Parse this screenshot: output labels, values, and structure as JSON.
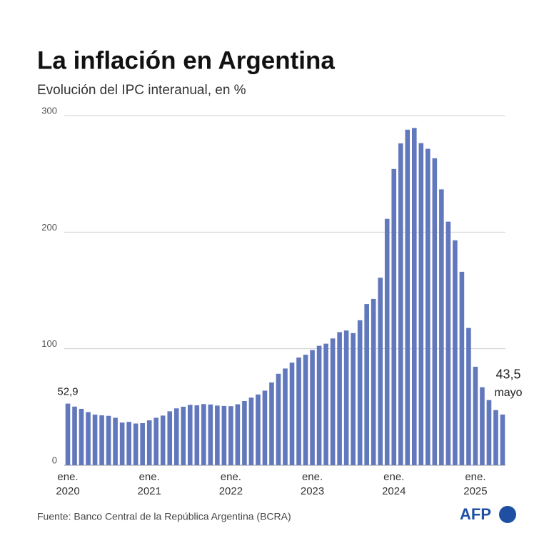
{
  "chart_data": {
    "type": "bar",
    "title": "La inflación en Argentina",
    "subtitle": "Evolución del IPC interanual, en %",
    "source": "Fuente: Banco Central de la República Argentina (BCRA)",
    "logo": "AFP",
    "annotation": "mayo",
    "color": "#6278bd",
    "categories": [
      "ene.\n2020",
      null,
      null,
      null,
      null,
      null,
      null,
      null,
      null,
      null,
      null,
      null,
      "ene.\n2021",
      null,
      null,
      null,
      null,
      null,
      null,
      null,
      null,
      null,
      null,
      null,
      "ene.\n2022",
      null,
      null,
      null,
      null,
      null,
      null,
      null,
      null,
      null,
      null,
      null,
      "ene.\n2023",
      null,
      null,
      null,
      null,
      null,
      null,
      null,
      null,
      null,
      null,
      null,
      "ene.\n2024",
      null,
      null,
      null,
      null,
      null,
      null,
      null,
      null,
      null,
      null,
      null,
      "ene.\n2025",
      null,
      null,
      null,
      null
    ],
    "values": [
      52.9,
      50.3,
      48.4,
      45.6,
      43.4,
      42.8,
      42.4,
      40.7,
      36.6,
      37.2,
      35.8,
      36.1,
      38.5,
      40.7,
      42.6,
      46.3,
      48.8,
      50.2,
      51.8,
      51.4,
      52.5,
      52.1,
      51.2,
      50.9,
      50.7,
      52.3,
      55.1,
      58.0,
      60.7,
      64.0,
      71.0,
      78.5,
      83.0,
      88.0,
      92.4,
      94.8,
      98.8,
      102.5,
      104.3,
      108.8,
      114.2,
      115.6,
      113.4,
      124.4,
      138.3,
      142.7,
      160.9,
      211.4,
      254.2,
      276.2,
      287.9,
      289.4,
      276.4,
      271.5,
      263.4,
      236.7,
      209.0,
      193.0,
      166.0,
      117.8,
      84.5,
      66.9,
      55.9,
      47.3,
      43.5
    ],
    "value_labels": [
      "52,9",
      null,
      null,
      null,
      null,
      null,
      null,
      null,
      null,
      null,
      null,
      null,
      null,
      null,
      null,
      null,
      null,
      null,
      null,
      null,
      null,
      null,
      null,
      null,
      null,
      null,
      null,
      null,
      null,
      null,
      null,
      null,
      null,
      null,
      null,
      null,
      null,
      null,
      null,
      null,
      null,
      null,
      null,
      null,
      null,
      null,
      null,
      null,
      null,
      null,
      null,
      null,
      null,
      null,
      null,
      null,
      null,
      null,
      null,
      null,
      null,
      null,
      null,
      null,
      "43,5"
    ],
    "ylim": [
      0,
      300
    ],
    "yticks": [
      0,
      100,
      200,
      300
    ],
    "grid": true
  }
}
